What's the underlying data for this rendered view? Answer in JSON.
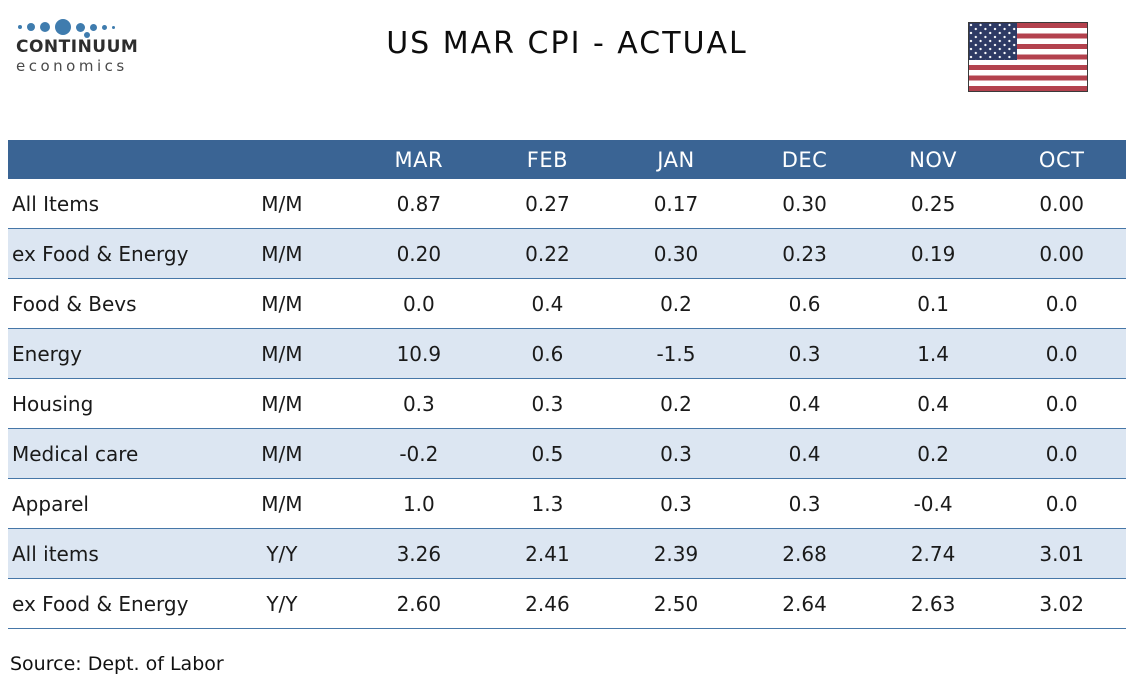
{
  "brand": {
    "name": "CONTINUUM",
    "subname": "economics",
    "logo_icon": "continuum-dots-logo",
    "dot_color": "#3F7CAE"
  },
  "header": {
    "title": "US MAR CPI - ACTUAL",
    "flag_icon": "us-flag"
  },
  "chart_data": {
    "type": "table",
    "title": "US MAR CPI - ACTUAL",
    "columns": [
      "MAR",
      "FEB",
      "JAN",
      "DEC",
      "NOV",
      "OCT"
    ],
    "rows": [
      {
        "label": "All Items",
        "period": "M/M",
        "values": [
          "0.87",
          "0.27",
          "0.17",
          "0.30",
          "0.25",
          "0.00"
        ]
      },
      {
        "label": "ex Food & Energy",
        "period": "M/M",
        "values": [
          "0.20",
          "0.22",
          "0.30",
          "0.23",
          "0.19",
          "0.00"
        ]
      },
      {
        "label": "Food & Bevs",
        "period": "M/M",
        "values": [
          "0.0",
          "0.4",
          "0.2",
          "0.6",
          "0.1",
          "0.0"
        ]
      },
      {
        "label": "Energy",
        "period": "M/M",
        "values": [
          "10.9",
          "0.6",
          "-1.5",
          "0.3",
          "1.4",
          "0.0"
        ]
      },
      {
        "label": "Housing",
        "period": "M/M",
        "values": [
          "0.3",
          "0.3",
          "0.2",
          "0.4",
          "0.4",
          "0.0"
        ]
      },
      {
        "label": "Medical care",
        "period": "M/M",
        "values": [
          "-0.2",
          "0.5",
          "0.3",
          "0.4",
          "0.2",
          "0.0"
        ]
      },
      {
        "label": "Apparel",
        "period": "M/M",
        "values": [
          "1.0",
          "1.3",
          "0.3",
          "0.3",
          "-0.4",
          "0.0"
        ]
      },
      {
        "label": "All items",
        "period": "Y/Y",
        "values": [
          "3.26",
          "2.41",
          "2.39",
          "2.68",
          "2.74",
          "3.01"
        ]
      },
      {
        "label": "ex Food & Energy",
        "period": "Y/Y",
        "values": [
          "2.60",
          "2.46",
          "2.50",
          "2.64",
          "2.63",
          "3.02"
        ]
      }
    ]
  },
  "footer": {
    "source": "Source: Dept. of Labor"
  },
  "colors": {
    "header_bg": "#3A6494",
    "band_bg": "#DCE6F2",
    "row_border": "#4677A8",
    "dot_blue": "#3F7CAE",
    "flag_red": "#B3424E",
    "flag_navy": "#2E3A64",
    "text_dark": "#1A1A1A"
  }
}
